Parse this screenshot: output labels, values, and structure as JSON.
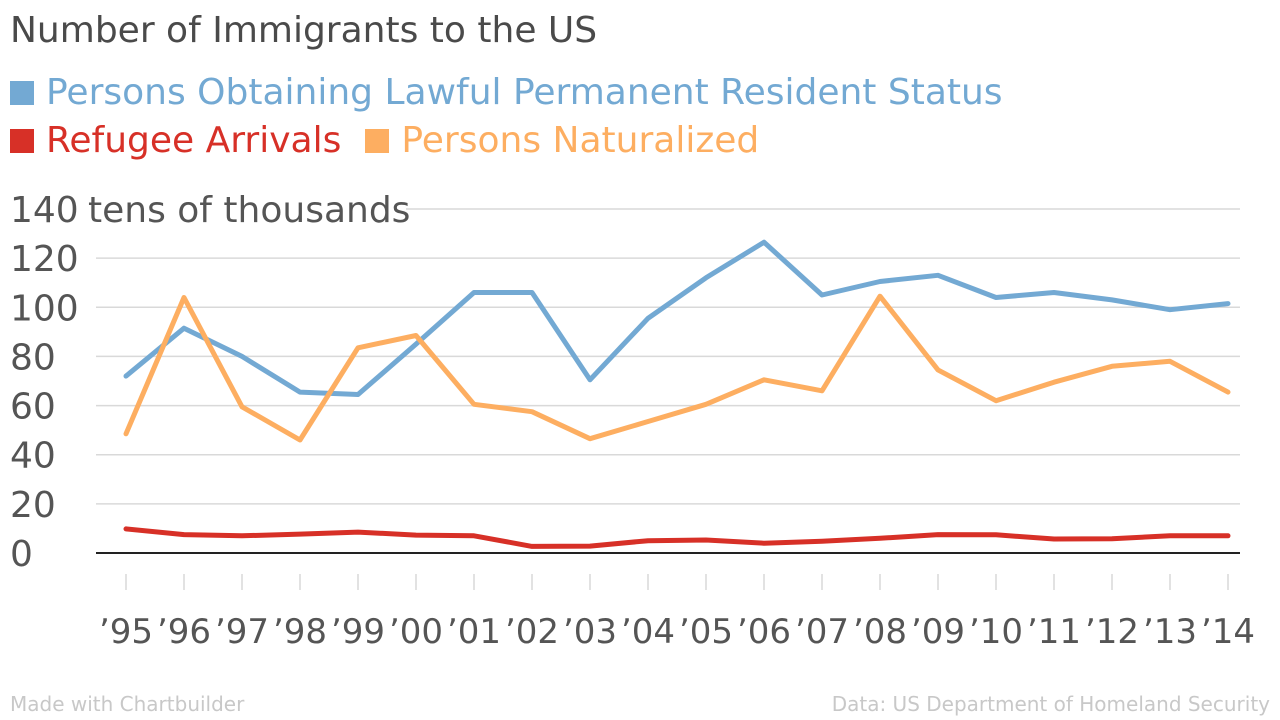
{
  "chart_data": {
    "type": "line",
    "title": "Number of Immigrants to the US",
    "ylabel": "tens of thousands",
    "ylim": [
      0,
      140
    ],
    "yticks": [
      0,
      20,
      40,
      60,
      80,
      100,
      120,
      140
    ],
    "grid": true,
    "legend_position": "top-left",
    "categories": [
      "’95",
      "’96",
      "’97",
      "’98",
      "’99",
      "’00",
      "’01",
      "’02",
      "’03",
      "’04",
      "’05",
      "’06",
      "’07",
      "’08",
      "’09",
      "’10",
      "’11",
      "’12",
      "’13",
      "’14"
    ],
    "series": [
      {
        "name": "Persons Obtaining Lawful Permanent Resident Status",
        "color": "#73a9d3",
        "values": [
          72,
          91.5,
          80,
          65.5,
          64.5,
          85,
          106,
          106,
          70.5,
          95.5,
          112,
          126.5,
          105,
          110.5,
          113,
          104,
          106,
          103,
          99,
          101.5
        ]
      },
      {
        "name": "Refugee Arrivals",
        "color": "#d73027",
        "values": [
          9.8,
          7.5,
          7,
          7.7,
          8.5,
          7.3,
          7,
          2.7,
          2.8,
          5,
          5.3,
          4,
          4.8,
          6,
          7.5,
          7.4,
          5.7,
          5.8,
          7,
          7
        ]
      },
      {
        "name": "Persons Naturalized",
        "color": "#fdae61",
        "values": [
          48.5,
          104,
          59.5,
          46,
          83.5,
          88.5,
          60.5,
          57.5,
          46.5,
          53.5,
          60.5,
          70.5,
          66,
          104.5,
          74.5,
          62,
          69.5,
          76,
          78,
          65.5
        ]
      }
    ]
  },
  "footer": {
    "left": "Made with Chartbuilder",
    "right": "Data: US Department of Homeland Security"
  },
  "style": {
    "grid_color": "#d9d9d9",
    "axis_color": "#222222",
    "text_color": "#555555"
  }
}
